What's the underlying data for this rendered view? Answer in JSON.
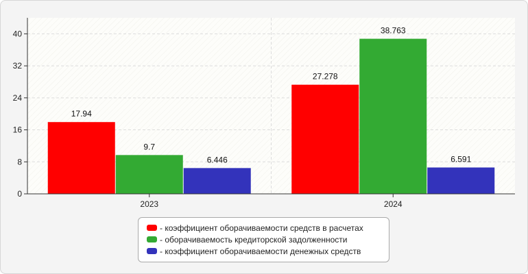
{
  "chart_data": {
    "type": "bar",
    "title": "",
    "xlabel": "",
    "ylabel": "",
    "categories": [
      "2023",
      "2024"
    ],
    "ylim": [
      0,
      44
    ],
    "yticks": [
      0,
      8,
      16,
      24,
      32,
      40
    ],
    "grid": true,
    "legend_position": "bottom",
    "series": [
      {
        "name": "- коэффициент оборачиваемости средств в расчетах",
        "color": "#ff0000",
        "values": [
          17.94,
          27.278
        ],
        "labels": [
          "17.94",
          "27.278"
        ]
      },
      {
        "name": "- оборачиваемость кредиторской задолженности",
        "color": "#33aa33",
        "values": [
          9.7,
          38.763
        ],
        "labels": [
          "9.7",
          "38.763"
        ]
      },
      {
        "name": "- коэффициент оборачиваемости денежных средств",
        "color": "#3333bb",
        "values": [
          6.446,
          6.591
        ],
        "labels": [
          "6.446",
          "6.591"
        ]
      }
    ]
  }
}
